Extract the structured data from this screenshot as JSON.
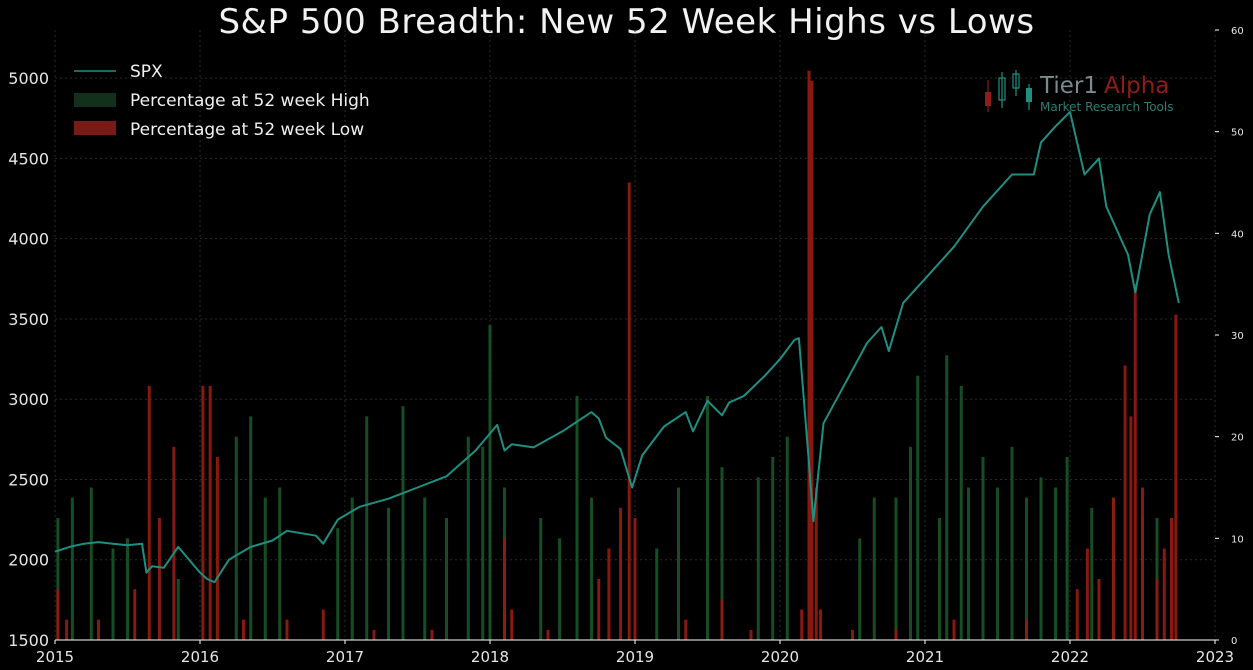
{
  "chart_data": {
    "type": "line",
    "title": "S&P 500 Breadth: New 52 Week Highs vs Lows",
    "xlabel": "",
    "ylabel": "",
    "xlim": [
      2015,
      2023
    ],
    "ylim": [
      1500,
      5300
    ],
    "y2lim": [
      0,
      60
    ],
    "x_ticks": [
      "2015",
      "2016",
      "2017",
      "2018",
      "2019",
      "2020",
      "2021",
      "2022",
      "2023"
    ],
    "y_ticks": [
      1500,
      2000,
      2500,
      3000,
      3500,
      4000,
      4500,
      5000
    ],
    "y2_ticks": [
      0,
      10,
      20,
      30,
      40,
      50,
      60
    ],
    "grid": true,
    "legend_position": "top-left",
    "series": [
      {
        "name": "SPX",
        "axis": "left",
        "kind": "line",
        "color": "#1f8f82",
        "x": [
          2015.0,
          2015.1,
          2015.2,
          2015.3,
          2015.4,
          2015.5,
          2015.6,
          2015.63,
          2015.67,
          2015.75,
          2015.85,
          2016.0,
          2016.05,
          2016.1,
          2016.2,
          2016.35,
          2016.5,
          2016.6,
          2016.8,
          2016.85,
          2016.95,
          2017.1,
          2017.3,
          2017.5,
          2017.7,
          2017.9,
          2018.05,
          2018.1,
          2018.15,
          2018.3,
          2018.5,
          2018.7,
          2018.75,
          2018.8,
          2018.9,
          2018.98,
          2019.05,
          2019.2,
          2019.35,
          2019.4,
          2019.5,
          2019.6,
          2019.65,
          2019.75,
          2019.9,
          2020.0,
          2020.1,
          2020.13,
          2020.2,
          2020.23,
          2020.3,
          2020.45,
          2020.6,
          2020.7,
          2020.75,
          2020.85,
          2021.0,
          2021.2,
          2021.4,
          2021.6,
          2021.75,
          2021.8,
          2021.9,
          2022.0,
          2022.1,
          2022.2,
          2022.25,
          2022.4,
          2022.45,
          2022.55,
          2022.62,
          2022.68,
          2022.75
        ],
        "y": [
          2050,
          2080,
          2100,
          2110,
          2100,
          2090,
          2100,
          1920,
          1960,
          1950,
          2080,
          1920,
          1880,
          1860,
          2000,
          2080,
          2120,
          2180,
          2150,
          2100,
          2250,
          2330,
          2380,
          2450,
          2520,
          2680,
          2840,
          2680,
          2720,
          2700,
          2800,
          2920,
          2880,
          2760,
          2690,
          2450,
          2650,
          2830,
          2920,
          2800,
          2990,
          2900,
          2980,
          3020,
          3150,
          3250,
          3370,
          3380,
          2600,
          2240,
          2850,
          3100,
          3350,
          3450,
          3300,
          3600,
          3750,
          3950,
          4200,
          4400,
          4400,
          4600,
          4700,
          4790,
          4400,
          4500,
          4200,
          3900,
          3666,
          4150,
          4290,
          3900,
          3600
        ]
      },
      {
        "name": "Percentage at 52 week High",
        "axis": "right",
        "kind": "bar",
        "color": "#1a5a2b",
        "x": [
          2015.02,
          2015.12,
          2015.25,
          2015.4,
          2015.5,
          2015.85,
          2016.25,
          2016.35,
          2016.45,
          2016.55,
          2016.95,
          2017.05,
          2017.15,
          2017.3,
          2017.4,
          2017.55,
          2017.7,
          2017.85,
          2017.95,
          2018.0,
          2018.1,
          2018.35,
          2018.48,
          2018.6,
          2018.7,
          2019.15,
          2019.3,
          2019.5,
          2019.6,
          2019.85,
          2019.95,
          2020.05,
          2020.55,
          2020.65,
          2020.8,
          2020.9,
          2020.95,
          2021.1,
          2021.15,
          2021.25,
          2021.3,
          2021.4,
          2021.5,
          2021.6,
          2021.7,
          2021.8,
          2021.9,
          2021.98,
          2022.15,
          2022.3,
          2022.5,
          2022.6
        ],
        "y": [
          12,
          14,
          15,
          9,
          10,
          6,
          20,
          22,
          14,
          15,
          11,
          14,
          22,
          13,
          23,
          14,
          12,
          20,
          19,
          31,
          15,
          12,
          10,
          24,
          14,
          9,
          15,
          24,
          17,
          16,
          18,
          20,
          10,
          14,
          14,
          19,
          26,
          12,
          28,
          25,
          15,
          18,
          15,
          19,
          14,
          16,
          15,
          18,
          13,
          14,
          12,
          12
        ]
      },
      {
        "name": "Percentage at 52 week Low",
        "axis": "right",
        "kind": "bar",
        "color": "#8e1a12",
        "x": [
          2015.02,
          2015.08,
          2015.3,
          2015.55,
          2015.65,
          2015.72,
          2015.82,
          2016.02,
          2016.07,
          2016.12,
          2016.3,
          2016.6,
          2016.85,
          2017.2,
          2017.6,
          2018.1,
          2018.15,
          2018.4,
          2018.75,
          2018.82,
          2018.9,
          2018.96,
          2019.0,
          2019.35,
          2019.6,
          2019.8,
          2020.15,
          2020.2,
          2020.22,
          2020.25,
          2020.28,
          2020.5,
          2020.8,
          2021.2,
          2021.7,
          2022.05,
          2022.12,
          2022.2,
          2022.3,
          2022.38,
          2022.42,
          2022.45,
          2022.5,
          2022.6,
          2022.65,
          2022.7,
          2022.73
        ],
        "y": [
          5,
          2,
          2,
          5,
          25,
          12,
          19,
          25,
          25,
          18,
          2,
          2,
          3,
          1,
          1,
          10,
          3,
          1,
          6,
          9,
          13,
          45,
          12,
          2,
          4,
          1,
          3,
          56,
          55,
          15,
          3,
          1,
          1,
          2,
          2,
          5,
          9,
          6,
          14,
          27,
          22,
          35,
          15,
          6,
          9,
          12,
          32
        ]
      }
    ]
  },
  "legend": {
    "items": [
      {
        "label": "SPX",
        "color": "#1f8f82"
      },
      {
        "label": "Percentage at 52 week High",
        "color": "#13301c"
      },
      {
        "label": "Percentage at 52 week Low",
        "color": "#7a1a14"
      }
    ]
  },
  "logo": {
    "name_part1": "Tier1",
    "name_part2": "Alpha",
    "tagline": "Market  Research Tools",
    "color_main": "#7b8a8a",
    "color_accent": "#8e1e17",
    "color_tagline": "#2e7d73"
  }
}
